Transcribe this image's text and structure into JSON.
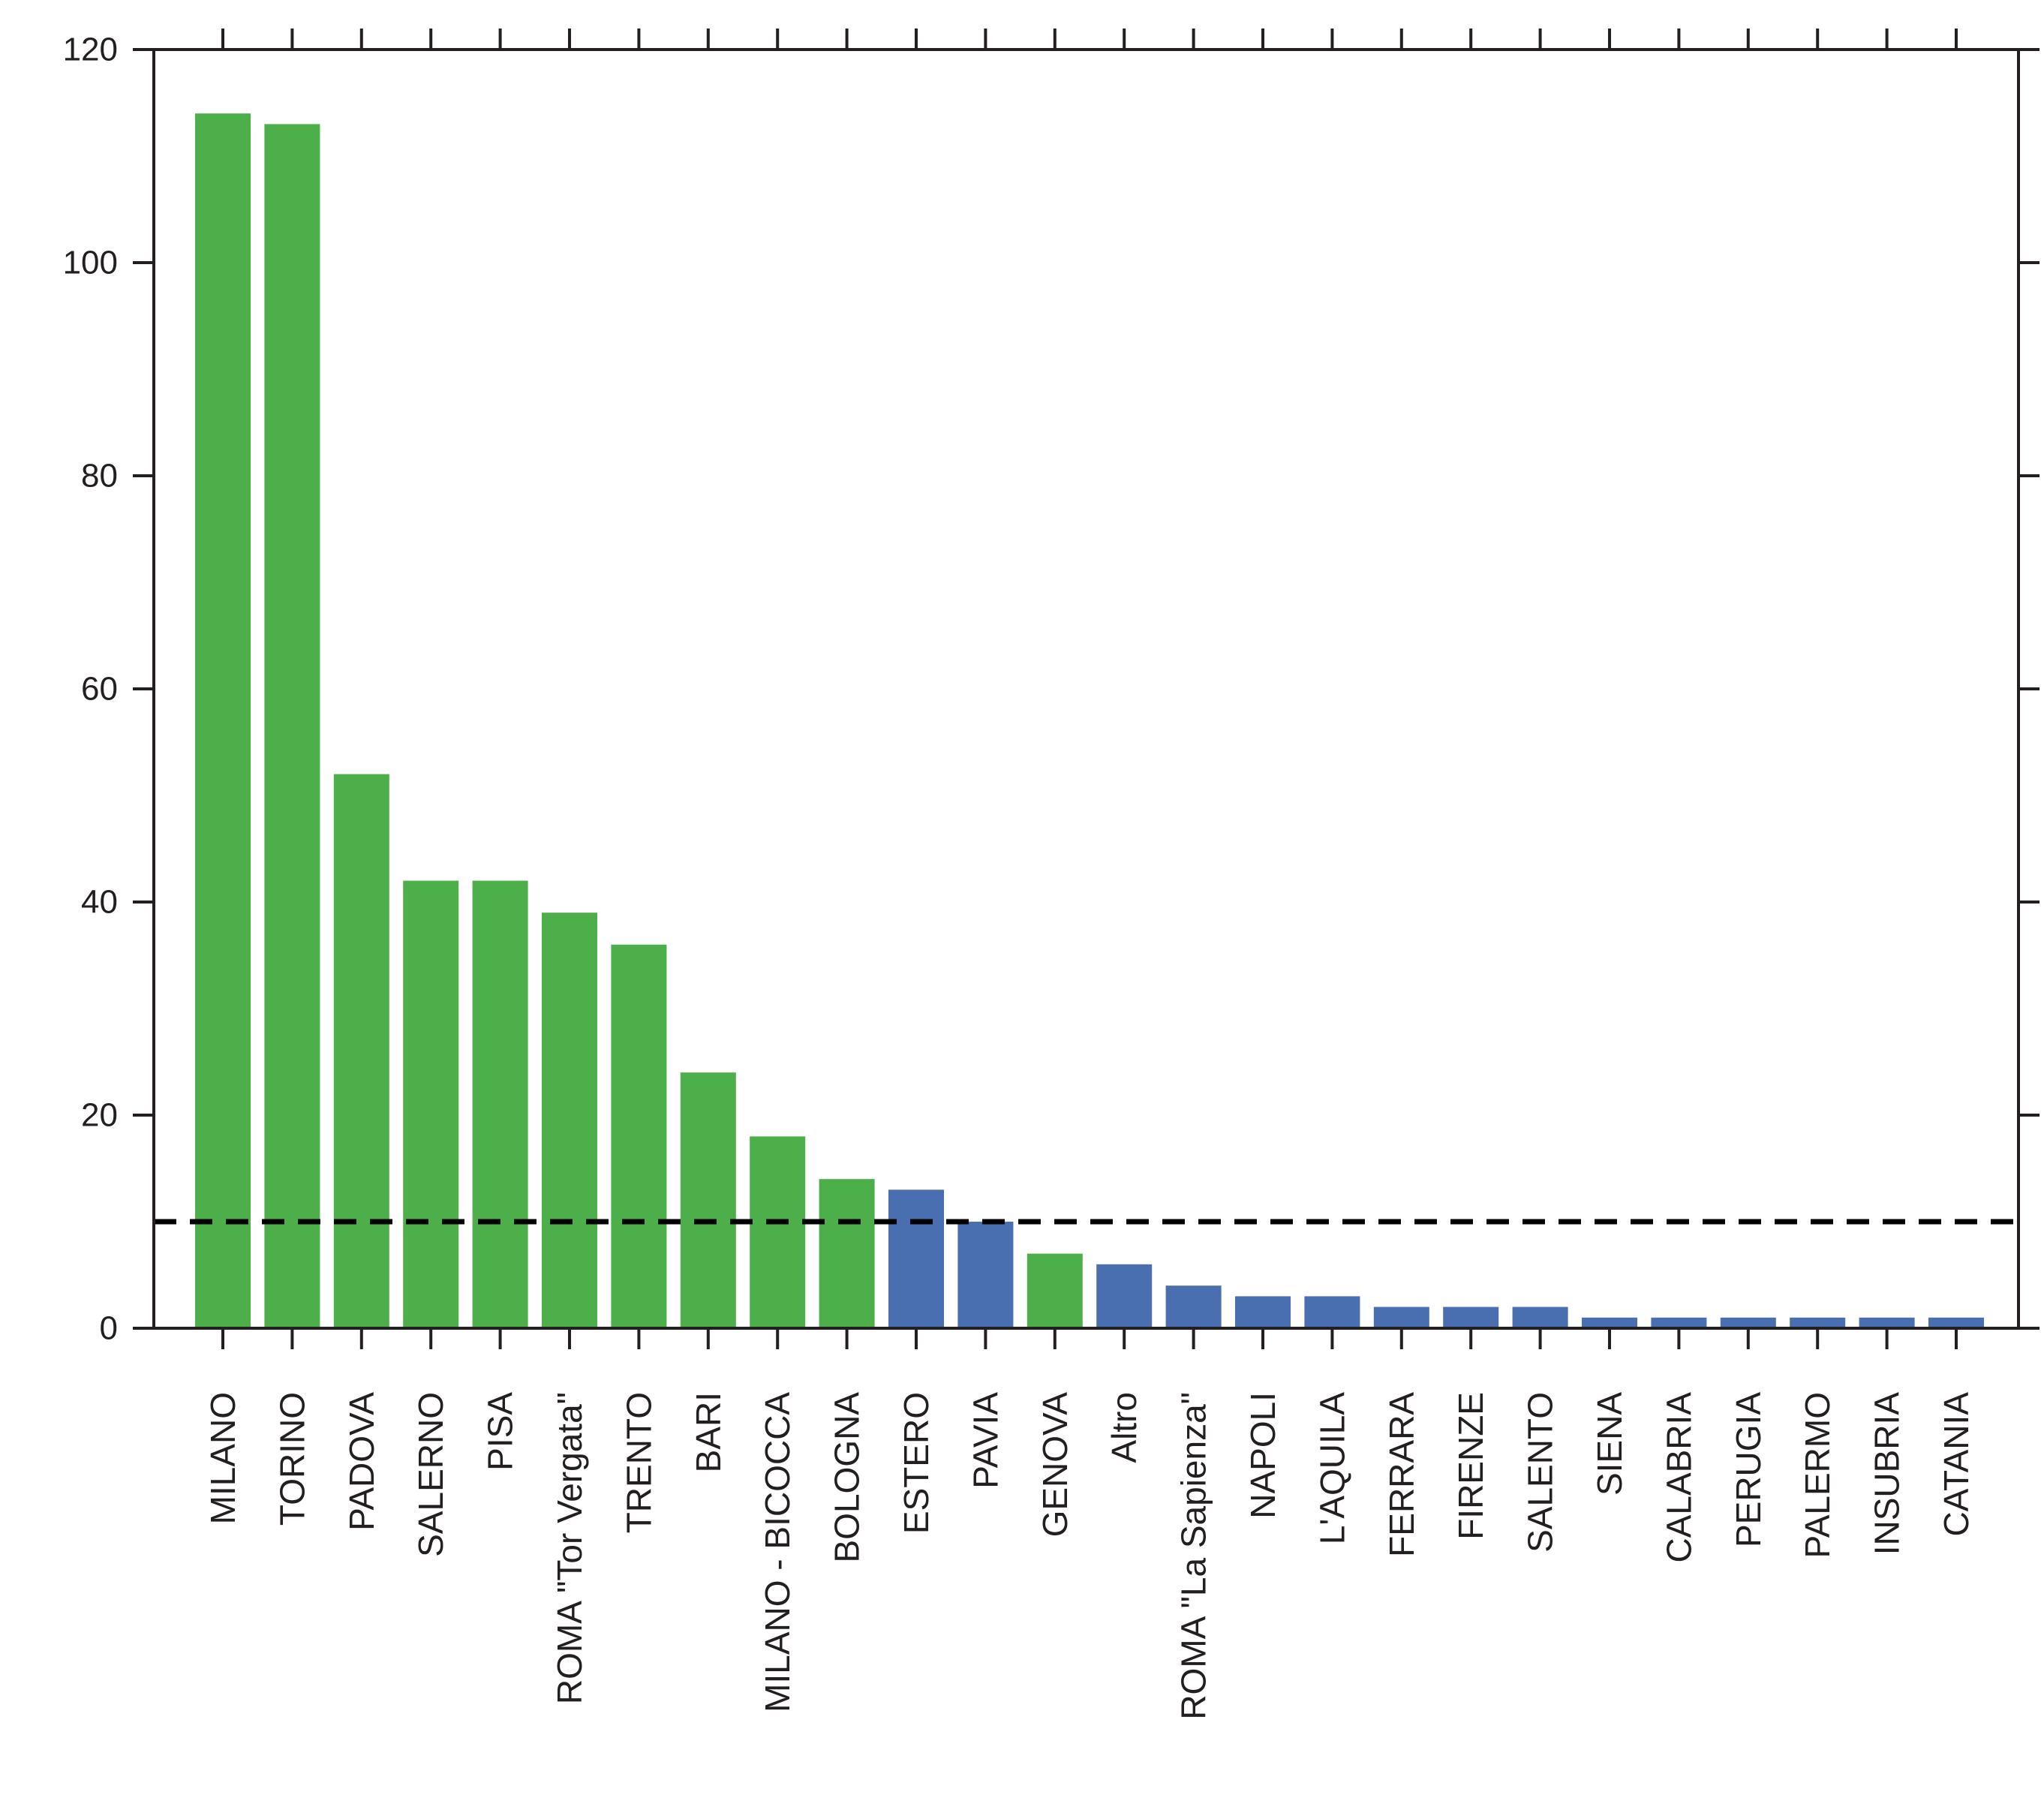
{
  "chart_data": {
    "type": "bar",
    "title": "",
    "xlabel": "",
    "ylabel": "",
    "ylim": [
      0,
      120
    ],
    "yticks": [
      0,
      20,
      40,
      60,
      80,
      100,
      120
    ],
    "grid": false,
    "reference_line": {
      "value": 10,
      "style": "dashed",
      "color": "#000000"
    },
    "colors": {
      "green": "#4daf4a",
      "blue": "#4a6fb0",
      "axis": "#231f20"
    },
    "categories": [
      "MILANO",
      "TORINO",
      "PADOVA",
      "SALERNO",
      "PISA",
      "ROMA \"Tor Vergata\"",
      "TRENTO",
      "BARI",
      "MILANO - BICOCCA",
      "BOLOGNA",
      "ESTERO",
      "PAVIA",
      "GENOVA",
      "Altro",
      "ROMA \"La Sapienza\"",
      "NAPOLI",
      "L'AQUILA",
      "FERRARA",
      "FIRENZE",
      "SALENTO",
      "SIENA",
      "CALABRIA",
      "PERUGIA",
      "PALERMO",
      "INSUBRIA",
      "CATANIA"
    ],
    "values": [
      114,
      113,
      52,
      42,
      42,
      39,
      36,
      24,
      18,
      14,
      13,
      10,
      7,
      6,
      4,
      3,
      3,
      2,
      2,
      2,
      1,
      1,
      1,
      1,
      1,
      1
    ],
    "bar_colors": [
      "green",
      "green",
      "green",
      "green",
      "green",
      "green",
      "green",
      "green",
      "green",
      "green",
      "blue",
      "blue",
      "green",
      "blue",
      "blue",
      "blue",
      "blue",
      "blue",
      "blue",
      "blue",
      "blue",
      "blue",
      "blue",
      "blue",
      "blue",
      "blue"
    ]
  }
}
